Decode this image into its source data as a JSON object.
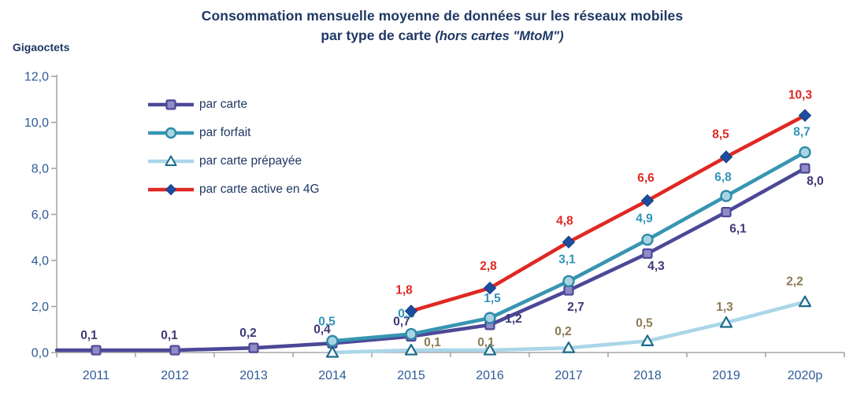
{
  "title": {
    "line1": "Consommation mensuelle moyenne de données sur les réseaux mobiles",
    "line2_bold": "par type de carte ",
    "line2_italic": "(hors cartes \"MtoM\")"
  },
  "y_axis": {
    "unit_label": "Gigaoctets",
    "tick_labels": [
      "0,0",
      "2,0",
      "4,0",
      "6,0",
      "8,0",
      "10,0",
      "12,0"
    ],
    "tick_values": [
      0,
      2,
      4,
      6,
      8,
      10,
      12
    ]
  },
  "x_axis": {
    "categories": [
      "2011",
      "2012",
      "2013",
      "2014",
      "2015",
      "2016",
      "2017",
      "2018",
      "2019",
      "2020p"
    ]
  },
  "colors": {
    "title_navy": "#1F3864",
    "axis_line_gray": "#A6A6A6",
    "tick_label_blue": "#2E5B97"
  },
  "chart_data": {
    "type": "line",
    "title": "Consommation mensuelle moyenne de données sur les réseaux mobiles par type de carte (hors cartes \"MtoM\")",
    "xlabel": "",
    "ylabel": "Gigaoctets",
    "ylim": [
      0,
      12
    ],
    "grid": false,
    "legend_position": "upper-left-inside",
    "categories": [
      "2011",
      "2012",
      "2013",
      "2014",
      "2015",
      "2016",
      "2017",
      "2018",
      "2019",
      "2020p"
    ],
    "series": [
      {
        "name": "par carte",
        "marker": "square",
        "line_color": "#4C4897",
        "marker_fill": "#8F8BC7",
        "marker_stroke": "#4C4897",
        "label_color": "#3D3979",
        "values": [
          0.1,
          0.1,
          0.2,
          0.4,
          0.7,
          1.2,
          2.7,
          4.3,
          6.1,
          8.0
        ],
        "labels": [
          "0,1",
          "0,1",
          "0,2",
          "0,4",
          "0,7",
          "1,2",
          "2,7",
          "4,3",
          "6,1",
          "8,0"
        ]
      },
      {
        "name": "par forfait",
        "marker": "circle",
        "line_color": "#3795B2",
        "marker_fill": "#A8D4E2",
        "marker_stroke": "#2E89A8",
        "label_color": "#3195B8",
        "values": [
          null,
          null,
          null,
          0.5,
          0.8,
          1.5,
          3.1,
          4.9,
          6.8,
          8.7
        ],
        "labels": [
          null,
          null,
          null,
          "0,5",
          "0,8",
          "1,5",
          "3,1",
          "4,9",
          "6,8",
          "8,7"
        ]
      },
      {
        "name": "par carte prépayée",
        "marker": "triangle",
        "line_color": "#AAD6E8",
        "marker_fill": "#F4FAFD",
        "marker_stroke": "#1D6B8A",
        "label_color": "#8C7B55",
        "values": [
          null,
          null,
          null,
          0.0,
          0.1,
          0.1,
          0.2,
          0.5,
          1.3,
          2.2
        ],
        "labels": [
          null,
          null,
          null,
          null,
          "0,1",
          "0,1",
          "0,2",
          "0,5",
          "1,3",
          "2,2"
        ]
      },
      {
        "name": "par carte active en 4G",
        "marker": "diamond",
        "line_color": "#E02823",
        "marker_fill": "#1C4D9E",
        "marker_stroke": "#163E80",
        "label_color": "#E02823",
        "values": [
          null,
          null,
          null,
          null,
          1.8,
          2.8,
          4.8,
          6.6,
          8.5,
          10.3
        ],
        "labels": [
          null,
          null,
          null,
          null,
          "1,8",
          "2,8",
          "4,8",
          "6,6",
          "8,5",
          "10,3"
        ]
      }
    ]
  }
}
